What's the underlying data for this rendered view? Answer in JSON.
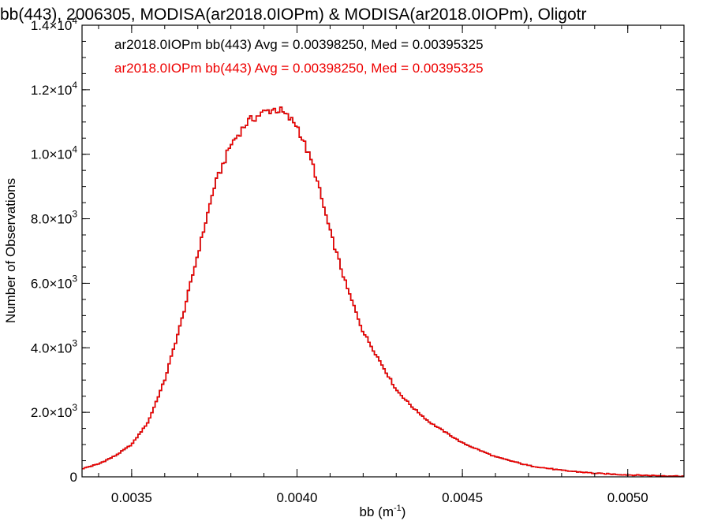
{
  "chart_data": {
    "type": "line",
    "step": true,
    "title": "bb(443), 2006305, MODISA(ar2018.0IOPm) & MODISA(ar2018.0IOPm), Oligotr",
    "xlabel": "bb (m",
    "xlabel_exp": "-1",
    "xlabel_suffix": ")",
    "ylabel": "Number of Observations",
    "xlim": [
      0.00335,
      0.00517
    ],
    "ylim": [
      0,
      14000
    ],
    "grid": false,
    "legend_position": "top-left",
    "x_ticks": [
      {
        "value": 0.0035,
        "label": "0.0035"
      },
      {
        "value": 0.004,
        "label": "0.0040"
      },
      {
        "value": 0.0045,
        "label": "0.0045"
      },
      {
        "value": 0.005,
        "label": "0.0050"
      }
    ],
    "x_minor_step": 0.0001,
    "y_ticks": [
      {
        "value": 0,
        "label": "0"
      },
      {
        "value": 2000,
        "mant": "2.0",
        "exp": "3"
      },
      {
        "value": 4000,
        "mant": "4.0",
        "exp": "3"
      },
      {
        "value": 6000,
        "mant": "6.0",
        "exp": "3"
      },
      {
        "value": 8000,
        "mant": "8.0",
        "exp": "3"
      },
      {
        "value": 10000,
        "mant": "1.0",
        "exp": "4"
      },
      {
        "value": 12000,
        "mant": "1.2",
        "exp": "4"
      },
      {
        "value": 14000,
        "mant": "1.4",
        "exp": "4"
      }
    ],
    "y_minor_step": 500,
    "x_times_symbol": "×10",
    "x": [
      0.00335,
      0.0034,
      0.00345,
      0.0035,
      0.00355,
      0.0036,
      0.00365,
      0.0037,
      0.00375,
      0.0038,
      0.00385,
      0.0039,
      0.00393,
      0.00395,
      0.004,
      0.00405,
      0.0041,
      0.00415,
      0.0042,
      0.00425,
      0.0043,
      0.00435,
      0.0044,
      0.0045,
      0.0046,
      0.0047,
      0.0048,
      0.0049,
      0.005,
      0.0051,
      0.00517
    ],
    "series": [
      {
        "name": "ar2018.0IOPm bb(443) Avg = 0.00398250, Med = 0.00395325",
        "color": "#000000",
        "values": [
          250,
          400,
          650,
          1000,
          1700,
          3000,
          4800,
          6900,
          9000,
          10300,
          11000,
          11300,
          11400,
          11350,
          10900,
          9600,
          7600,
          5900,
          4500,
          3600,
          2700,
          2150,
          1700,
          1050,
          620,
          350,
          200,
          110,
          60,
          35,
          20
        ]
      },
      {
        "name": "ar2018.0IOPm bb(443) Avg = 0.00398250, Med = 0.00395325",
        "color": "#ee0000",
        "values": [
          250,
          400,
          650,
          1000,
          1700,
          3000,
          4800,
          6900,
          9000,
          10300,
          11000,
          11300,
          11400,
          11350,
          10900,
          9600,
          7600,
          5900,
          4500,
          3600,
          2700,
          2150,
          1700,
          1050,
          620,
          350,
          200,
          110,
          60,
          35,
          20
        ]
      }
    ]
  }
}
